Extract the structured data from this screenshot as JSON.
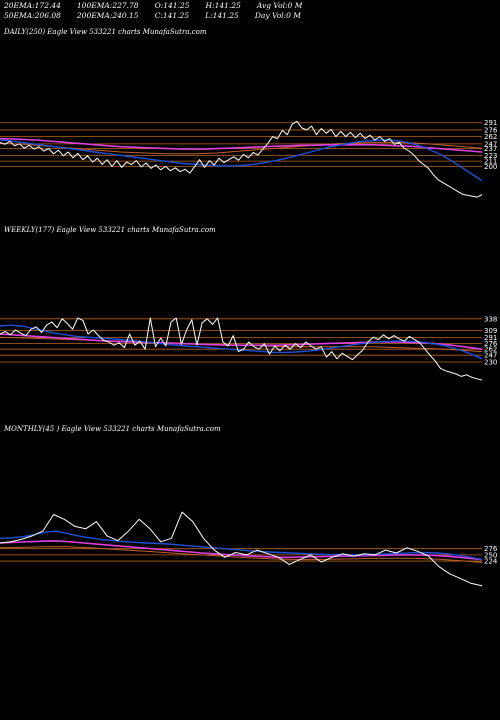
{
  "header": {
    "row1": [
      {
        "label": "20EMA:",
        "value": "172.44"
      },
      {
        "label": "100EMA:",
        "value": "227.78"
      },
      {
        "label": "O:",
        "value": "141.25"
      },
      {
        "label": "H:",
        "value": "141.25"
      },
      {
        "label": "Avg Vol:",
        "value": "0  M"
      }
    ],
    "row2": [
      {
        "label": "50EMA:",
        "value": "206.08"
      },
      {
        "label": "200EMA:",
        "value": "240.15"
      },
      {
        "label": "C:",
        "value": "141.25"
      },
      {
        "label": "L:",
        "value": "141.25"
      },
      {
        "label": "Day Vol:",
        "value": "0  M"
      }
    ]
  },
  "colors": {
    "background": "#000000",
    "price": "#ffffff",
    "ema_short": "#1f4fd6",
    "ema_pink": "#e040e0",
    "ema_long": "#c06030",
    "level": "#b5651d"
  },
  "chart_data": [
    {
      "type": "line",
      "title": "DAILY(250) Eagle  View  533221 charts MunafaSutra.com",
      "level_labels": [
        "291",
        "276",
        "262",
        "247",
        "237",
        "223",
        "211",
        "200"
      ],
      "level_values": [
        291,
        276,
        262,
        247,
        237,
        223,
        211,
        200
      ],
      "ylim": [
        105,
        305
      ],
      "series": [
        {
          "role": "price",
          "values": [
            250,
            246,
            252,
            243,
            247,
            238,
            244,
            236,
            241,
            232,
            237,
            226,
            234,
            222,
            230,
            218,
            227,
            214,
            222,
            209,
            217,
            204,
            214,
            200,
            212,
            198,
            209,
            204,
            212,
            199,
            207,
            196,
            203,
            193,
            200,
            191,
            197,
            189,
            194,
            186,
            200,
            214,
            198,
            212,
            203,
            217,
            208,
            214,
            220,
            213,
            225,
            218,
            229,
            224,
            236,
            248,
            262,
            258,
            275,
            266,
            288,
            294,
            280,
            276,
            284,
            266,
            279,
            269,
            277,
            262,
            273,
            262,
            271,
            260,
            269,
            258,
            265,
            255,
            262,
            252,
            258,
            246,
            250,
            238,
            232,
            224,
            212,
            204,
            196,
            183,
            172,
            166,
            160,
            154,
            148,
            142,
            140,
            138,
            136,
            141
          ]
        },
        {
          "role": "ema_short",
          "values": [
            255,
            254,
            252,
            250,
            248,
            246,
            244,
            242,
            240,
            238,
            236,
            234,
            232,
            230,
            228,
            226,
            224,
            222,
            220,
            218,
            216,
            214,
            212,
            210,
            208,
            206,
            205,
            204,
            203,
            202,
            201,
            201,
            201,
            202,
            203,
            205,
            207,
            210,
            213,
            216,
            220,
            224,
            228,
            232,
            236,
            240,
            243,
            246,
            249,
            251,
            253,
            254,
            255,
            255,
            254,
            252,
            249,
            245,
            240,
            234,
            227,
            219,
            210,
            200,
            190,
            180,
            170
          ]
        },
        {
          "role": "ema_pink",
          "values": [
            258,
            257,
            256,
            255,
            253,
            251,
            249,
            247,
            245,
            243,
            241,
            240,
            239,
            238,
            237,
            236,
            236,
            236,
            237,
            238,
            239,
            240,
            241,
            242,
            243,
            244,
            244,
            245,
            245,
            245,
            245,
            245,
            244,
            243,
            242,
            240,
            238,
            236,
            234,
            232,
            230
          ]
        },
        {
          "role": "ema_long",
          "values": [
            248,
            247,
            246,
            244,
            242,
            240,
            238,
            236,
            234,
            232,
            230,
            229,
            228,
            227,
            226,
            226,
            226,
            227,
            228,
            230,
            232,
            234,
            236,
            238,
            240,
            242,
            244,
            246,
            247,
            248,
            249,
            250,
            250,
            250,
            249,
            248,
            246,
            244,
            242,
            240,
            238
          ]
        }
      ]
    },
    {
      "type": "line",
      "title": "WEEKLY(177) Eagle  View  533221 charts MunafaSutra.com",
      "level_labels": [
        "338",
        "309",
        "291",
        "276",
        "262",
        "247",
        "230"
      ],
      "level_values": [
        338,
        309,
        291,
        276,
        262,
        247,
        230
      ],
      "ylim": [
        155,
        355
      ],
      "series": [
        {
          "role": "price",
          "values": [
            300,
            306,
            298,
            310,
            302,
            296,
            312,
            318,
            304,
            322,
            330,
            316,
            338,
            326,
            312,
            340,
            334,
            300,
            310,
            296,
            284,
            280,
            272,
            278,
            266,
            300,
            272,
            282,
            262,
            340,
            268,
            290,
            270,
            330,
            340,
            274,
            310,
            336,
            272,
            328,
            338,
            324,
            340,
            280,
            270,
            296,
            256,
            262,
            280,
            268,
            262,
            276,
            250,
            270,
            258,
            272,
            262,
            276,
            266,
            280,
            270,
            262,
            268,
            242,
            256,
            238,
            252,
            244,
            236,
            248,
            260,
            280,
            292,
            286,
            298,
            288,
            296,
            288,
            282,
            294,
            286,
            278,
            262,
            246,
            232,
            214,
            208,
            204,
            200,
            194,
            198,
            192,
            188,
            185
          ]
        },
        {
          "role": "ema_short",
          "values": [
            320,
            322,
            320,
            314,
            308,
            302,
            298,
            294,
            292,
            290,
            288,
            286,
            284,
            281,
            278,
            275,
            272,
            270,
            268,
            266,
            264,
            262,
            260,
            258,
            256,
            254,
            254,
            255,
            257,
            260,
            264,
            268,
            272,
            276,
            279,
            281,
            282,
            282,
            281,
            278,
            274,
            268,
            260,
            250,
            238
          ]
        },
        {
          "role": "ema_pink",
          "values": [
            300,
            298,
            296,
            294,
            292,
            290,
            288,
            286,
            284,
            282,
            281,
            280,
            279,
            278,
            277,
            276,
            275,
            274,
            273,
            272,
            272,
            272,
            272,
            272,
            273,
            274,
            275,
            276,
            277,
            278,
            279,
            280,
            280,
            280,
            279,
            278,
            276,
            274,
            270,
            266,
            262
          ]
        },
        {
          "role": "ema_long",
          "values": [
            292,
            291,
            290,
            289,
            288,
            287,
            286,
            285,
            284,
            283,
            282,
            281,
            280,
            279,
            278,
            277,
            276,
            275,
            274,
            273,
            272,
            271,
            270,
            269,
            268,
            268,
            268,
            268,
            268,
            268,
            268,
            268,
            267,
            266,
            265,
            264,
            263,
            262,
            260,
            258,
            256
          ]
        }
      ]
    },
    {
      "type": "line",
      "title": "MONTHLY(45                         ) Eagle  View  533221 charts MunafaSutra.com",
      "level_labels": [
        "276",
        "250",
        "224"
      ],
      "level_values": [
        276,
        250,
        224
      ],
      "ylim": [
        60,
        460
      ],
      "series": [
        {
          "role": "price",
          "values": [
            300,
            305,
            315,
            330,
            350,
            420,
            400,
            370,
            360,
            390,
            330,
            310,
            350,
            400,
            360,
            305,
            320,
            430,
            390,
            320,
            270,
            240,
            260,
            250,
            270,
            255,
            240,
            210,
            230,
            250,
            220,
            240,
            255,
            245,
            255,
            250,
            270,
            258,
            280,
            265,
            245,
            200,
            170,
            150,
            130,
            120
          ]
        },
        {
          "role": "ema_short",
          "values": [
            320,
            322,
            326,
            335,
            345,
            350,
            340,
            330,
            322,
            315,
            310,
            306,
            303,
            300,
            298,
            296,
            292,
            288,
            284,
            280,
            276,
            272,
            268,
            265,
            262,
            260,
            258,
            256,
            254,
            252,
            251,
            250,
            250,
            251,
            253,
            255,
            257,
            259,
            260,
            258,
            254,
            248,
            240,
            230
          ]
        },
        {
          "role": "ema_pink",
          "values": [
            300,
            302,
            304,
            306,
            308,
            309,
            306,
            302,
            298,
            294,
            290,
            286,
            282,
            278,
            274,
            270,
            266,
            262,
            258,
            255,
            252,
            249,
            246,
            244,
            242,
            240,
            240,
            241,
            242,
            243,
            244,
            245,
            246,
            247,
            248,
            249,
            250,
            250,
            249,
            247,
            244,
            240,
            235,
            230
          ]
        },
        {
          "role": "ema_long",
          "values": [
            280,
            281,
            282,
            283,
            284,
            285,
            284,
            282,
            280,
            277,
            274,
            271,
            268,
            265,
            262,
            259,
            256,
            253,
            250,
            247,
            244,
            241,
            238,
            236,
            234,
            232,
            231,
            230,
            230,
            231,
            232,
            233,
            234,
            235,
            236,
            236,
            236,
            235,
            234,
            232,
            229,
            226,
            222,
            218
          ]
        }
      ]
    }
  ]
}
